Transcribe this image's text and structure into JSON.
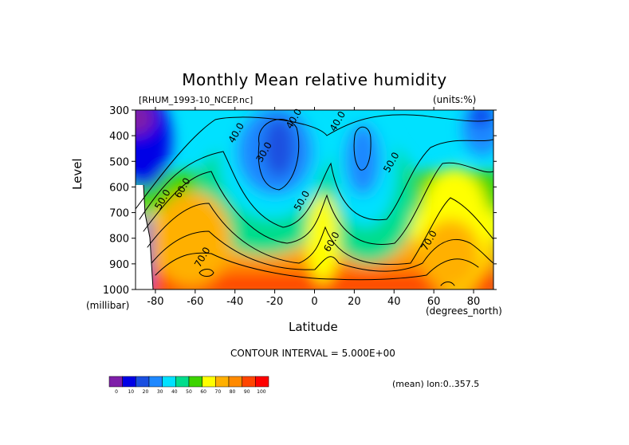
{
  "title": "Monthly Mean relative humidity",
  "file_label": "[RHUM_1993-10_NCEP.nc]",
  "units_label": "(units:%)",
  "contour_interval": "CONTOUR INTERVAL = 5.000E+00",
  "mean_info": "(mean) lon:0..357.5",
  "colorbar": {
    "colors": [
      "#7f1fa9",
      "#0000e6",
      "#1a4fe0",
      "#1e88ff",
      "#00e1ff",
      "#00dd8c",
      "#3cd400",
      "#ffff00",
      "#ffb000",
      "#ff8a00",
      "#ff4500",
      "#ff0000"
    ],
    "labels": [
      "0",
      "10",
      "20",
      "30",
      "40",
      "50",
      "60",
      "70",
      "80",
      "90",
      "100"
    ]
  },
  "chart_data": {
    "type": "heatmap",
    "title": "Monthly Mean relative humidity",
    "xlabel": "Latitude",
    "x_units": "(degrees_north)",
    "ylabel": "Level",
    "y_units": "(millibar)",
    "xlim": [
      -90,
      90
    ],
    "ylim": [
      1000,
      300
    ],
    "x_ticks": [
      -80,
      -60,
      -40,
      -20,
      0,
      20,
      40,
      60,
      80
    ],
    "x_tick_labels": [
      "-80",
      "-60",
      "-40",
      "-20",
      "0",
      "20",
      "40",
      "60",
      "80"
    ],
    "y_ticks": [
      300,
      400,
      500,
      600,
      700,
      800,
      900,
      1000
    ],
    "contour_interval": 5,
    "contour_labels": [
      {
        "text": "40.0",
        "x": -38,
        "y": 395
      },
      {
        "text": "30.0",
        "x": -24,
        "y": 470
      },
      {
        "text": "40.0",
        "x": -9,
        "y": 340
      },
      {
        "text": "40.0",
        "x": 13,
        "y": 350
      },
      {
        "text": "50.0",
        "x": 40,
        "y": 510
      },
      {
        "text": "50.0",
        "x": -5,
        "y": 660
      },
      {
        "text": "50.0",
        "x": -75,
        "y": 655
      },
      {
        "text": "60.0",
        "x": -65,
        "y": 610
      },
      {
        "text": "60.0",
        "x": 10,
        "y": 820
      },
      {
        "text": "70.0",
        "x": 59,
        "y": 815
      },
      {
        "text": "70.0",
        "x": -55,
        "y": 880
      }
    ],
    "grid": false,
    "legend": "colorbar bottom-left"
  }
}
